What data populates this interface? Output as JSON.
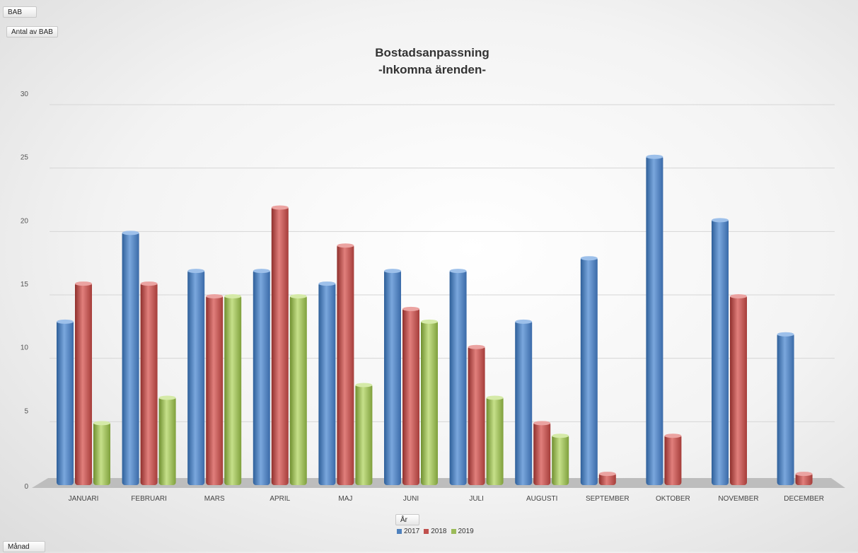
{
  "pivot": {
    "filter_button": "BAB",
    "values_button": "Antal av BAB",
    "legend_field_button": "År",
    "axis_field_button": "Månad"
  },
  "chart_data": {
    "type": "bar",
    "title": "Bostadsanpassning",
    "subtitle": "-Inkomna ärenden-",
    "categories": [
      "JANUARI",
      "FEBRUARI",
      "MARS",
      "APRIL",
      "MAJ",
      "JUNI",
      "JULI",
      "AUGUSTI",
      "SEPTEMBER",
      "OKTOBER",
      "NOVEMBER",
      "DECEMBER"
    ],
    "series": [
      {
        "name": "2017",
        "color": "#4f81bd",
        "values": [
          13,
          20,
          17,
          17,
          16,
          17,
          17,
          13,
          18,
          26,
          21,
          12
        ]
      },
      {
        "name": "2018",
        "color": "#c0504d",
        "values": [
          16,
          16,
          15,
          22,
          19,
          14,
          11,
          5,
          1,
          4,
          15,
          1
        ]
      },
      {
        "name": "2019",
        "color": "#9bbb59",
        "values": [
          5,
          7,
          15,
          15,
          8,
          13,
          7,
          4,
          null,
          null,
          null,
          null
        ]
      }
    ],
    "ylim": [
      0,
      30
    ],
    "yticks": [
      0,
      5,
      10,
      15,
      20,
      25,
      30
    ],
    "grid": true,
    "legend": "bottom"
  }
}
